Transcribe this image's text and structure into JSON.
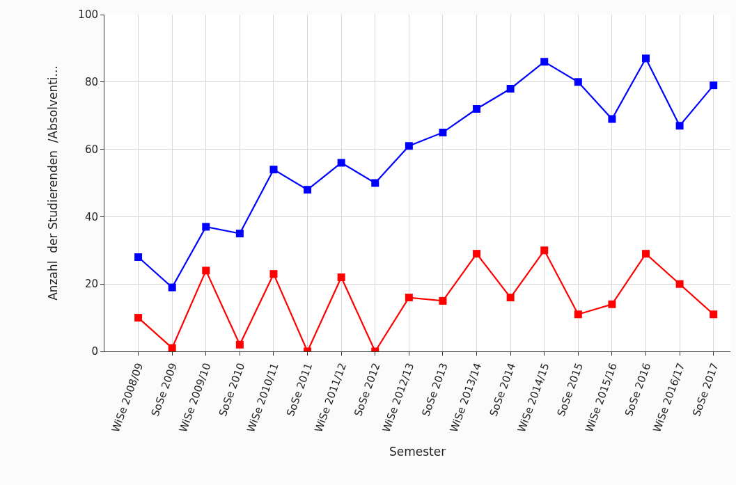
{
  "chart_data": {
    "type": "line",
    "xlabel": "Semester",
    "ylabel": "Anzahl  der Studierenden  /Absolventi...",
    "categories": [
      "WiSe 2008/09",
      "SoSe 2009",
      "WiSe 2009/10",
      "SoSe 2010",
      "WiSe 2010/11",
      "SoSe 2011",
      "WiSe 2011/12",
      "SoSe 2012",
      "WiSe 2012/13",
      "SoSe 2013",
      "WiSe 2013/14",
      "SoSe 2014",
      "WiSe 2014/15",
      "SoSe 2015",
      "WiSe 2015/16",
      "SoSe 2016",
      "WiSe 2016/17",
      "SoSe 2017"
    ],
    "series": [
      {
        "color": "#0000ff",
        "values": [
          28,
          19,
          37,
          35,
          54,
          48,
          56,
          50,
          61,
          65,
          72,
          78,
          86,
          80,
          69,
          87,
          67,
          79
        ]
      },
      {
        "color": "#ff0000",
        "values": [
          10,
          1,
          24,
          2,
          23,
          0,
          22,
          0,
          16,
          15,
          29,
          16,
          30,
          11,
          14,
          29,
          20,
          11
        ]
      }
    ],
    "ylim": [
      0,
      100
    ],
    "yticks": [
      0,
      20,
      40,
      60,
      80,
      100
    ],
    "grid": true,
    "marker": "square",
    "line_style": "solid"
  }
}
